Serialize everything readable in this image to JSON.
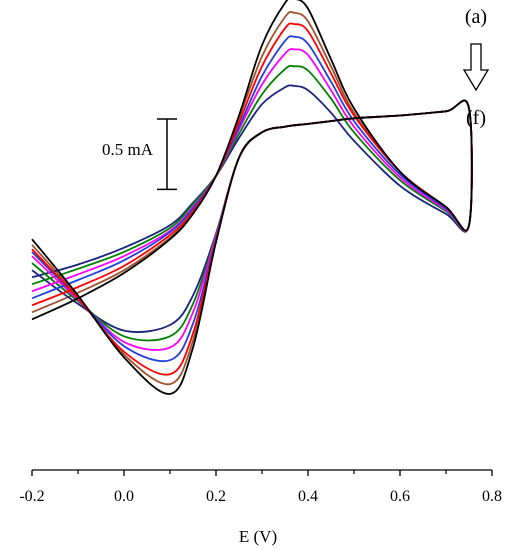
{
  "chart_data": {
    "type": "line",
    "xlabel": "E (V)",
    "ylabel": "",
    "xlim": [
      -0.2,
      0.8
    ],
    "x_ticks": [
      -0.2,
      0.0,
      0.2,
      0.4,
      0.6,
      0.8
    ],
    "x_tick_labels": [
      "-0.2",
      "0.0",
      "0.2",
      "0.4",
      "0.6",
      "0.8"
    ],
    "y_unit": "mA",
    "ylim": [
      -1.65,
      1.55
    ],
    "grid": false,
    "scale_bar": {
      "label": "0.5 mA",
      "value": 0.5
    },
    "annotations": {
      "first": "(a)",
      "last": "(f)",
      "arrow": "down"
    },
    "x": [
      -0.2,
      -0.1,
      0.0,
      0.1,
      0.15,
      0.2,
      0.25,
      0.3,
      0.35,
      0.37,
      0.4,
      0.45,
      0.5,
      0.6,
      0.7,
      0.75
    ],
    "series": [
      {
        "color": "#000000",
        "forward": [
          -0.65,
          -0.5,
          -0.32,
          -0.08,
          0.1,
          0.37,
          0.8,
          1.3,
          1.6,
          1.63,
          1.56,
          1.2,
          0.85,
          0.4,
          0.15,
          0.02
        ],
        "reverse": [
          -0.08,
          -0.48,
          -0.92,
          -1.18,
          -0.85,
          -0.1,
          0.5,
          0.68,
          0.72,
          0.73,
          0.74,
          0.76,
          0.78,
          0.8,
          0.83,
          0.85
        ]
      },
      {
        "color": "#ff0000",
        "forward": [
          -0.55,
          -0.42,
          -0.27,
          -0.05,
          0.12,
          0.37,
          0.75,
          1.15,
          1.42,
          1.45,
          1.4,
          1.1,
          0.8,
          0.4,
          0.15,
          0.02
        ],
        "reverse": [
          -0.15,
          -0.5,
          -0.88,
          -1.04,
          -0.75,
          -0.09,
          0.5,
          0.68,
          0.72,
          0.73,
          0.74,
          0.76,
          0.78,
          0.8,
          0.83,
          0.85
        ]
      },
      {
        "color": "#1f3fdf",
        "forward": [
          -0.5,
          -0.37,
          -0.23,
          -0.03,
          0.14,
          0.37,
          0.72,
          1.08,
          1.33,
          1.36,
          1.31,
          1.04,
          0.76,
          0.38,
          0.14,
          0.02
        ],
        "reverse": [
          -0.17,
          -0.5,
          -0.84,
          -0.94,
          -0.68,
          -0.08,
          0.5,
          0.68,
          0.72,
          0.73,
          0.74,
          0.76,
          0.78,
          0.8,
          0.83,
          0.85
        ]
      },
      {
        "color": "#ff00ff",
        "forward": [
          -0.45,
          -0.33,
          -0.2,
          -0.02,
          0.15,
          0.37,
          0.7,
          1.02,
          1.24,
          1.27,
          1.23,
          0.98,
          0.72,
          0.36,
          0.13,
          0.02
        ],
        "reverse": [
          -0.2,
          -0.51,
          -0.81,
          -0.85,
          -0.6,
          -0.06,
          0.5,
          0.68,
          0.72,
          0.73,
          0.74,
          0.76,
          0.78,
          0.8,
          0.83,
          0.85
        ]
      },
      {
        "color": "#008000",
        "forward": [
          -0.4,
          -0.29,
          -0.17,
          0.0,
          0.17,
          0.37,
          0.67,
          0.95,
          1.13,
          1.15,
          1.12,
          0.92,
          0.68,
          0.34,
          0.12,
          0.02
        ],
        "reverse": [
          -0.25,
          -0.52,
          -0.77,
          -0.77,
          -0.54,
          -0.05,
          0.5,
          0.68,
          0.72,
          0.73,
          0.74,
          0.76,
          0.78,
          0.8,
          0.83,
          0.85
        ]
      },
      {
        "color": "#1a237e",
        "forward": [
          -0.35,
          -0.26,
          -0.14,
          0.02,
          0.18,
          0.37,
          0.64,
          0.88,
          1.0,
          1.01,
          0.98,
          0.82,
          0.62,
          0.3,
          0.1,
          0.02
        ],
        "reverse": [
          -0.3,
          -0.54,
          -0.73,
          -0.69,
          -0.48,
          -0.04,
          0.5,
          0.68,
          0.72,
          0.73,
          0.74,
          0.76,
          0.78,
          0.8,
          0.83,
          0.85
        ]
      },
      {
        "color": "#a0522d",
        "forward": [
          -0.6,
          -0.46,
          -0.3,
          -0.07,
          0.11,
          0.37,
          0.78,
          1.22,
          1.5,
          1.53,
          1.47,
          1.15,
          0.82,
          0.4,
          0.15,
          0.02
        ],
        "reverse": [
          -0.12,
          -0.49,
          -0.9,
          -1.11,
          -0.8,
          -0.1,
          0.5,
          0.68,
          0.72,
          0.73,
          0.74,
          0.76,
          0.78,
          0.8,
          0.83,
          0.85
        ]
      }
    ]
  }
}
